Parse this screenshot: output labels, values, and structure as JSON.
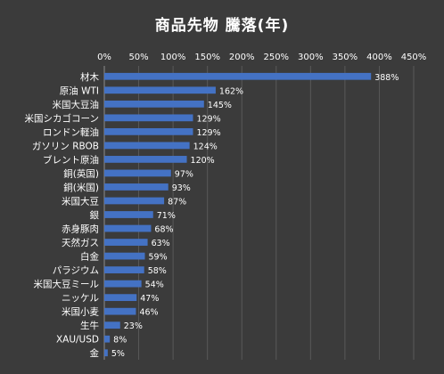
{
  "chart_data": {
    "type": "bar",
    "orientation": "horizontal",
    "title": "商品先物 騰落(年)",
    "categories": [
      "材木",
      "原油 WTI",
      "米国大豆油",
      "米国シカゴコーン",
      "ロンドン軽油",
      "ガソリン RBOB",
      "ブレント原油",
      "銅(英国)",
      "銅(米国)",
      "米国大豆",
      "銀",
      "赤身豚肉",
      "天然ガス",
      "白金",
      "パラジウム",
      "米国大豆ミール",
      "ニッケル",
      "米国小麦",
      "生牛",
      "XAU/USD",
      "金"
    ],
    "values": [
      388,
      162,
      145,
      129,
      129,
      124,
      120,
      97,
      93,
      87,
      71,
      68,
      63,
      59,
      58,
      54,
      47,
      46,
      23,
      8,
      5
    ],
    "value_labels": [
      "388%",
      "162%",
      "145%",
      "129%",
      "129%",
      "124%",
      "120%",
      "97%",
      "93%",
      "87%",
      "71%",
      "68%",
      "63%",
      "59%",
      "58%",
      "54%",
      "47%",
      "46%",
      "23%",
      "8%",
      "5%"
    ],
    "xlim": [
      0,
      450
    ],
    "x_ticks": [
      "0%",
      "50%",
      "100%",
      "150%",
      "200%",
      "250%",
      "300%",
      "350%",
      "400%",
      "450%"
    ],
    "x_axis_position": "top",
    "grid": true,
    "legend": "none",
    "colors": {
      "background": "#3b3b3b",
      "bar": "#4472c4",
      "text": "#ffffff",
      "grid": "#595959"
    }
  }
}
